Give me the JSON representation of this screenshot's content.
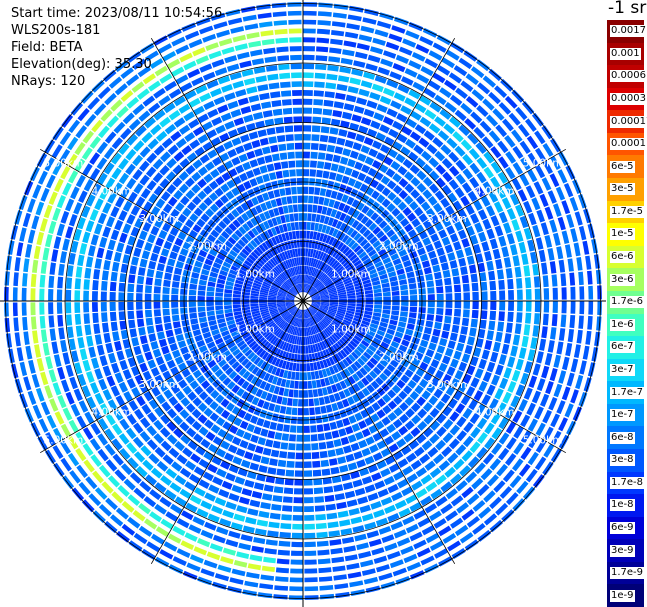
{
  "info": {
    "start_time": "Start time: 2023/08/11 10:54:56",
    "instrument": "WLS200s-181",
    "field": "Field: BETA",
    "elevation": "Elevation(deg): 35.30",
    "nrays": "NRays: 120"
  },
  "colorbar": {
    "title": "-1 sr",
    "levels": [
      {
        "label": "0.0017",
        "color": "#8a0000"
      },
      {
        "label": "0.001",
        "color": "#a80000"
      },
      {
        "label": "0.0006",
        "color": "#c00000"
      },
      {
        "label": "0.0003",
        "color": "#dd0000"
      },
      {
        "label": "0.00017",
        "color": "#ee2a00"
      },
      {
        "label": "0.0001",
        "color": "#ff5500"
      },
      {
        "label": "6e-5",
        "color": "#ff7a00"
      },
      {
        "label": "3e-5",
        "color": "#ffa000"
      },
      {
        "label": "1.7e-5",
        "color": "#ffd000"
      },
      {
        "label": "1e-5",
        "color": "#ffff00"
      },
      {
        "label": "6e-6",
        "color": "#d8ff30"
      },
      {
        "label": "3e-6",
        "color": "#a6ff60"
      },
      {
        "label": "1.7e-6",
        "color": "#70ff90"
      },
      {
        "label": "1e-6",
        "color": "#40ffc0"
      },
      {
        "label": "6e-7",
        "color": "#22f0e6"
      },
      {
        "label": "3e-7",
        "color": "#10d8f8"
      },
      {
        "label": "1.7e-7",
        "color": "#00b8ff"
      },
      {
        "label": "1e-7",
        "color": "#0098ff"
      },
      {
        "label": "6e-8",
        "color": "#0078ff"
      },
      {
        "label": "3e-8",
        "color": "#0058ff"
      },
      {
        "label": "1.7e-8",
        "color": "#0038ff"
      },
      {
        "label": "1e-8",
        "color": "#0018f0"
      },
      {
        "label": "6e-9",
        "color": "#0000d8"
      },
      {
        "label": "3e-9",
        "color": "#0000b8"
      },
      {
        "label": "1.7e-9",
        "color": "#000098"
      },
      {
        "label": "1e-9",
        "color": "#000078"
      }
    ]
  },
  "chart_data": {
    "type": "heatmap",
    "projection": "polar",
    "field": "BETA",
    "units": "-1 sr",
    "nrays": 120,
    "range_rings_km": [
      1,
      2,
      3,
      4,
      5
    ],
    "range_labels": [
      "1.00km",
      "2.00km",
      "3.00km",
      "4.00km",
      "5.00km"
    ],
    "max_range_km": 5.1,
    "spokes_deg": [
      0,
      30,
      60,
      90,
      120,
      150,
      180,
      210,
      240,
      270,
      300,
      330
    ],
    "background_level": "3e-8",
    "features": [
      {
        "description": "thin cloud arc",
        "azimuth_deg": [
          185,
          360
        ],
        "range_km": [
          4.3,
          4.7
        ],
        "peak_level": "1e-5"
      },
      {
        "description": "enhanced ring",
        "azimuth_deg": [
          0,
          360
        ],
        "range_km": [
          3.6,
          4.0
        ],
        "peak_level": "1.7e-7"
      }
    ]
  }
}
